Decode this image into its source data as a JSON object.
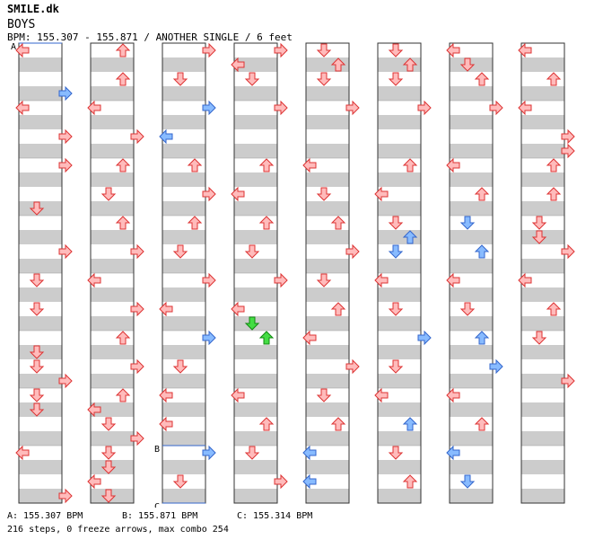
{
  "artist": "SMILE.dk",
  "title": "BOYS",
  "bpm_line": "BPM: 155.307 - 155.871 / ANOTHER SINGLE / 6 feet",
  "markers": [
    {
      "label": "A",
      "bpm": "A: 155.307 BPM"
    },
    {
      "label": "B",
      "bpm": "B: 155.871 BPM"
    },
    {
      "label": "C",
      "bpm": "C: 155.314 BPM"
    }
  ],
  "stats": "216 steps, 0 freeze arrows, max combo 254",
  "colors": {
    "stripe": "#cccccc",
    "arrow_red_fill": "#ffbbbb",
    "arrow_red_stroke": "#dd3333",
    "arrow_blue_fill": "#88bbff",
    "arrow_blue_stroke": "#3366cc",
    "arrow_green_fill": "#44dd44",
    "arrow_green_stroke": "#118811",
    "marker_line": "#3366cc"
  },
  "chart_data": {
    "type": "step-chart",
    "lanes": [
      "left",
      "down",
      "up",
      "right"
    ],
    "columns": 8,
    "measures_per_column": 8,
    "notes": [
      [
        7,
        0,
        "L",
        "r"
      ],
      [
        7,
        0.5,
        "U",
        "r"
      ],
      [
        7,
        1,
        "L",
        "r"
      ],
      [
        7,
        1.5,
        "R",
        "r"
      ],
      [
        7,
        1.75,
        "R",
        "r"
      ],
      [
        7,
        2,
        "U",
        "r"
      ],
      [
        7,
        2.5,
        "U",
        "r"
      ],
      [
        7,
        3,
        "D",
        "r"
      ],
      [
        7,
        3.25,
        "D",
        "r"
      ],
      [
        7,
        3.5,
        "R",
        "r"
      ],
      [
        7,
        4,
        "L",
        "r"
      ],
      [
        7,
        4.5,
        "U",
        "r"
      ],
      [
        7,
        5,
        "D",
        "r"
      ],
      [
        7,
        5.75,
        "R",
        "r"
      ],
      [
        0,
        0,
        "L",
        "r"
      ],
      [
        0,
        0.75,
        "R",
        "b"
      ],
      [
        0,
        1,
        "L",
        "r"
      ],
      [
        0,
        1.5,
        "R",
        "r"
      ],
      [
        0,
        2,
        "R",
        "r"
      ],
      [
        0,
        2.75,
        "D",
        "r"
      ],
      [
        0,
        3.5,
        "R",
        "r"
      ],
      [
        0,
        4,
        "D",
        "r"
      ],
      [
        0,
        4.5,
        "D",
        "r"
      ],
      [
        0,
        5.25,
        "D",
        "r"
      ],
      [
        0,
        5.5,
        "D",
        "r"
      ],
      [
        0,
        5.75,
        "R",
        "r"
      ],
      [
        0,
        6,
        "D",
        "r"
      ],
      [
        0,
        6.25,
        "D",
        "r"
      ],
      [
        0,
        7,
        "L",
        "r"
      ],
      [
        0,
        7.75,
        "R",
        "r"
      ],
      [
        0,
        8,
        "D",
        "r"
      ],
      [
        0,
        8.75,
        "R",
        "r"
      ],
      [
        0,
        9,
        "R",
        "r"
      ],
      [
        0,
        9.5,
        "L",
        "r"
      ],
      [
        0,
        9.75,
        "R",
        "r"
      ],
      [
        0,
        10,
        "D",
        "r"
      ],
      [
        0,
        10.5,
        "U",
        "r"
      ],
      [
        0,
        11,
        "D",
        "r"
      ],
      [
        0,
        11.5,
        "D",
        "r"
      ],
      [
        0,
        12,
        "L",
        "r"
      ],
      [
        0,
        13,
        "L",
        "r"
      ],
      [
        0,
        13.5,
        "U",
        "r"
      ],
      [
        0,
        14,
        "R",
        "r"
      ],
      [
        0,
        14.5,
        "U",
        "r"
      ],
      [
        0,
        14.75,
        "R",
        "r"
      ],
      [
        0,
        15,
        "L",
        "r"
      ],
      [
        0,
        15.25,
        "U",
        "r"
      ],
      [
        0,
        15.5,
        "D",
        "r"
      ],
      [
        0,
        15.75,
        "D",
        "r"
      ],
      [
        0,
        16,
        "R",
        "r"
      ],
      [
        0,
        16.5,
        "U",
        "r"
      ],
      [
        0,
        17,
        "R",
        "r"
      ],
      [
        0,
        17.25,
        "L",
        "b"
      ],
      [
        0,
        17.5,
        "R",
        "r"
      ],
      [
        0,
        17.75,
        "L",
        "b"
      ],
      [
        1,
        0,
        "U",
        "r"
      ],
      [
        1,
        0.5,
        "U",
        "r"
      ],
      [
        1,
        1,
        "L",
        "r"
      ],
      [
        1,
        1.5,
        "R",
        "r"
      ],
      [
        1,
        2,
        "U",
        "r"
      ],
      [
        1,
        2.5,
        "D",
        "r"
      ],
      [
        1,
        3,
        "U",
        "r"
      ],
      [
        1,
        3.5,
        "R",
        "r"
      ],
      [
        1,
        4,
        "L",
        "r"
      ],
      [
        1,
        4.5,
        "R",
        "r"
      ],
      [
        1,
        5,
        "U",
        "r"
      ],
      [
        1,
        5.5,
        "R",
        "r"
      ],
      [
        1,
        6,
        "U",
        "r"
      ],
      [
        1,
        6.25,
        "L",
        "r"
      ],
      [
        1,
        6.5,
        "D",
        "r"
      ],
      [
        1,
        6.75,
        "R",
        "r"
      ],
      [
        1,
        7,
        "D",
        "r"
      ],
      [
        1,
        7.25,
        "D",
        "r"
      ],
      [
        1,
        7.5,
        "L",
        "r"
      ],
      [
        1,
        7.75,
        "D",
        "r"
      ],
      [
        1,
        8,
        "D",
        "r"
      ],
      [
        1,
        8.25,
        "D",
        "r"
      ],
      [
        1,
        8.5,
        "U",
        "r"
      ],
      [
        1,
        8.75,
        "L",
        "r"
      ],
      [
        1,
        9,
        "U",
        "r"
      ],
      [
        1,
        9.5,
        "D",
        "r"
      ],
      [
        1,
        9.75,
        "R",
        "b"
      ],
      [
        1,
        10,
        "R",
        "r"
      ],
      [
        1,
        10.5,
        "U",
        "r"
      ],
      [
        1,
        11,
        "L",
        "r"
      ],
      [
        1,
        11.5,
        "R",
        "r"
      ],
      [
        1,
        12,
        "U",
        "r"
      ],
      [
        1,
        12.5,
        "U",
        "r"
      ],
      [
        1,
        13,
        "L",
        "r"
      ],
      [
        1,
        13.5,
        "R",
        "r"
      ],
      [
        1,
        14,
        "D",
        "r"
      ],
      [
        1,
        14.5,
        "R",
        "r"
      ],
      [
        1,
        15,
        "L",
        "r"
      ],
      [
        1,
        15.5,
        "R",
        "r"
      ],
      [
        1,
        16,
        "U",
        "r"
      ],
      [
        1,
        16.5,
        "D",
        "r"
      ],
      [
        1,
        17,
        "U",
        "r"
      ],
      [
        1,
        17.5,
        "U",
        "r"
      ],
      [
        2,
        0,
        "R",
        "r"
      ],
      [
        2,
        0.5,
        "D",
        "r"
      ],
      [
        2,
        1,
        "R",
        "b"
      ],
      [
        2,
        1.5,
        "L",
        "b"
      ],
      [
        2,
        2,
        "U",
        "r"
      ],
      [
        2,
        2.5,
        "R",
        "r"
      ],
      [
        2,
        3,
        "U",
        "r"
      ],
      [
        2,
        3.5,
        "D",
        "r"
      ],
      [
        2,
        4,
        "R",
        "r"
      ],
      [
        2,
        4.5,
        "L",
        "r"
      ],
      [
        2,
        5,
        "R",
        "b"
      ],
      [
        2,
        5.5,
        "D",
        "r"
      ],
      [
        2,
        6,
        "L",
        "r"
      ],
      [
        2,
        6.5,
        "L",
        "r"
      ],
      [
        2,
        7,
        "R",
        "b"
      ],
      [
        2,
        7.5,
        "D",
        "r"
      ],
      [
        2,
        8,
        "U",
        "r"
      ],
      [
        2,
        8.5,
        "D",
        "r"
      ],
      [
        2,
        9,
        "R",
        "r"
      ],
      [
        2,
        9.5,
        "R",
        "r"
      ],
      [
        2,
        10,
        "L",
        "r"
      ],
      [
        2,
        10.5,
        "U",
        "r"
      ],
      [
        2,
        11,
        "R",
        "b"
      ],
      [
        2,
        11.5,
        "R",
        "r"
      ],
      [
        2,
        12,
        "L",
        "r"
      ],
      [
        2,
        12.5,
        "D",
        "r"
      ],
      [
        2,
        13,
        "R",
        "r"
      ],
      [
        2,
        13.25,
        "U",
        "b"
      ],
      [
        2,
        14,
        "L",
        "r"
      ],
      [
        2,
        14.5,
        "U",
        "r"
      ],
      [
        2,
        15,
        "R",
        "r"
      ],
      [
        2,
        15.5,
        "L",
        "r"
      ],
      [
        2,
        16,
        "R",
        "r"
      ],
      [
        2,
        16.5,
        "D",
        "r"
      ],
      [
        2,
        17,
        "R",
        "r"
      ],
      [
        2,
        17.5,
        "L",
        "r"
      ],
      [
        3,
        0,
        "R",
        "r"
      ],
      [
        3,
        0.25,
        "L",
        "r"
      ],
      [
        3,
        0.5,
        "D",
        "r"
      ],
      [
        3,
        1,
        "R",
        "r"
      ],
      [
        3,
        2,
        "U",
        "r"
      ],
      [
        3,
        2.5,
        "L",
        "r"
      ],
      [
        3,
        3,
        "U",
        "r"
      ],
      [
        3,
        3.5,
        "D",
        "r"
      ],
      [
        3,
        4,
        "R",
        "r"
      ],
      [
        3,
        4.5,
        "L",
        "r"
      ],
      [
        3,
        4.75,
        "D",
        "g"
      ],
      [
        3,
        5,
        "U",
        "g"
      ],
      [
        3,
        6,
        "L",
        "r"
      ],
      [
        3,
        6.5,
        "U",
        "r"
      ],
      [
        3,
        7,
        "D",
        "r"
      ],
      [
        3,
        7.5,
        "R",
        "r"
      ],
      [
        3,
        8,
        "D",
        "r"
      ],
      [
        3,
        8.5,
        "D",
        "r"
      ],
      [
        3,
        9,
        "R",
        "r"
      ],
      [
        3,
        9.5,
        "L",
        "r"
      ],
      [
        3,
        10,
        "D",
        "r"
      ],
      [
        3,
        10.5,
        "R",
        "r"
      ],
      [
        3,
        11,
        "D",
        "r"
      ],
      [
        3,
        11.5,
        "D",
        "r"
      ],
      [
        3,
        12,
        "R",
        "r"
      ],
      [
        3,
        12.25,
        "L",
        "r"
      ],
      [
        3,
        12.5,
        "D",
        "r"
      ],
      [
        3,
        13,
        "R",
        "r"
      ],
      [
        3,
        14,
        "D",
        "r"
      ],
      [
        3,
        14.5,
        "R",
        "r"
      ],
      [
        3,
        15,
        "L",
        "r"
      ],
      [
        3,
        15.5,
        "R",
        "r"
      ],
      [
        3,
        16,
        "D",
        "r"
      ],
      [
        3,
        16.5,
        "U",
        "r"
      ],
      [
        3,
        17,
        "R",
        "r"
      ],
      [
        3,
        17.5,
        "L",
        "r"
      ],
      [
        4,
        0,
        "D",
        "r"
      ],
      [
        4,
        0.25,
        "U",
        "r"
      ],
      [
        4,
        0.5,
        "D",
        "r"
      ],
      [
        4,
        1,
        "R",
        "r"
      ],
      [
        4,
        2,
        "L",
        "r"
      ],
      [
        4,
        2.5,
        "D",
        "r"
      ],
      [
        4,
        3,
        "U",
        "r"
      ],
      [
        4,
        3.5,
        "R",
        "r"
      ],
      [
        4,
        4,
        "D",
        "r"
      ],
      [
        4,
        4.5,
        "U",
        "r"
      ],
      [
        4,
        5,
        "L",
        "r"
      ],
      [
        4,
        5.5,
        "R",
        "r"
      ],
      [
        4,
        6,
        "D",
        "r"
      ],
      [
        4,
        6.5,
        "U",
        "r"
      ],
      [
        4,
        7,
        "L",
        "b"
      ],
      [
        4,
        7.5,
        "L",
        "b"
      ],
      [
        4,
        8,
        "D",
        "r"
      ],
      [
        4,
        8.5,
        "R",
        "r"
      ],
      [
        4,
        9,
        "U",
        "r"
      ],
      [
        4,
        9.5,
        "L",
        "r"
      ],
      [
        4,
        10,
        "R",
        "r"
      ],
      [
        4,
        10.5,
        "U",
        "r"
      ],
      [
        4,
        11,
        "L",
        "r"
      ],
      [
        4,
        11.5,
        "D",
        "r"
      ],
      [
        4,
        12,
        "R",
        "r"
      ],
      [
        4,
        12.5,
        "L",
        "r"
      ],
      [
        4,
        13,
        "U",
        "r"
      ],
      [
        4,
        13.5,
        "D",
        "r"
      ],
      [
        4,
        14,
        "L",
        "r"
      ],
      [
        4,
        14.5,
        "R",
        "r"
      ],
      [
        4,
        15,
        "D",
        "r"
      ],
      [
        4,
        15.5,
        "U",
        "r"
      ],
      [
        4,
        16,
        "D",
        "r"
      ],
      [
        4,
        16.5,
        "U",
        "r"
      ],
      [
        4,
        17,
        "R",
        "b"
      ],
      [
        4,
        17.5,
        "D",
        "r"
      ],
      [
        5,
        0,
        "D",
        "r"
      ],
      [
        5,
        0.25,
        "U",
        "r"
      ],
      [
        5,
        0.5,
        "D",
        "r"
      ],
      [
        5,
        1,
        "R",
        "r"
      ],
      [
        5,
        2,
        "U",
        "r"
      ],
      [
        5,
        2.5,
        "L",
        "r"
      ],
      [
        5,
        3,
        "D",
        "r"
      ],
      [
        5,
        3.25,
        "U",
        "b"
      ],
      [
        5,
        3.5,
        "D",
        "b"
      ],
      [
        5,
        4,
        "L",
        "r"
      ],
      [
        5,
        4.5,
        "D",
        "r"
      ],
      [
        5,
        5,
        "R",
        "b"
      ],
      [
        5,
        5.5,
        "D",
        "r"
      ],
      [
        5,
        6,
        "L",
        "r"
      ],
      [
        5,
        6.5,
        "U",
        "b"
      ],
      [
        5,
        7,
        "D",
        "r"
      ],
      [
        5,
        7.5,
        "U",
        "r"
      ],
      [
        5,
        8,
        "D",
        "r"
      ],
      [
        5,
        8.5,
        "L",
        "r"
      ],
      [
        5,
        9,
        "R",
        "r"
      ],
      [
        5,
        9.5,
        "L",
        "r"
      ],
      [
        5,
        10,
        "D",
        "r"
      ],
      [
        5,
        10.5,
        "U",
        "r"
      ],
      [
        5,
        11,
        "L",
        "r"
      ],
      [
        5,
        11.5,
        "R",
        "r"
      ],
      [
        5,
        12,
        "L",
        "r"
      ],
      [
        5,
        12.5,
        "R",
        "r"
      ],
      [
        5,
        13,
        "L",
        "r"
      ],
      [
        5,
        13.5,
        "R",
        "b"
      ],
      [
        5,
        14,
        "L",
        "r"
      ],
      [
        5,
        14.5,
        "D",
        "r"
      ],
      [
        5,
        15,
        "R",
        "r"
      ],
      [
        5,
        15.5,
        "U",
        "b"
      ],
      [
        5,
        16,
        "L",
        "r"
      ],
      [
        5,
        16.5,
        "U",
        "r"
      ],
      [
        5,
        17,
        "L",
        "r"
      ],
      [
        5,
        17.5,
        "L",
        "r"
      ],
      [
        6,
        0,
        "L",
        "r"
      ],
      [
        6,
        0.25,
        "D",
        "r"
      ],
      [
        6,
        0.5,
        "U",
        "r"
      ],
      [
        6,
        1,
        "R",
        "r"
      ],
      [
        6,
        2,
        "L",
        "r"
      ],
      [
        6,
        2.5,
        "U",
        "r"
      ],
      [
        6,
        3,
        "D",
        "b"
      ],
      [
        6,
        3.5,
        "U",
        "b"
      ],
      [
        6,
        4,
        "L",
        "r"
      ],
      [
        6,
        4.5,
        "D",
        "r"
      ],
      [
        6,
        5,
        "U",
        "b"
      ],
      [
        6,
        5.5,
        "R",
        "b"
      ],
      [
        6,
        6,
        "L",
        "r"
      ],
      [
        6,
        6.5,
        "U",
        "r"
      ],
      [
        6,
        7,
        "L",
        "b"
      ],
      [
        6,
        7.5,
        "D",
        "b"
      ],
      [
        6,
        8,
        "R",
        "r"
      ],
      [
        6,
        8.5,
        "R",
        "r"
      ],
      [
        6,
        9,
        "L",
        "r"
      ],
      [
        6,
        9.5,
        "L",
        "r"
      ],
      [
        6,
        10,
        "R",
        "r"
      ],
      [
        6,
        10.5,
        "U",
        "r"
      ],
      [
        6,
        11,
        "L",
        "r"
      ],
      [
        6,
        11.5,
        "R",
        "r"
      ]
    ]
  }
}
